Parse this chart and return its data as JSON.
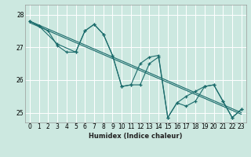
{
  "xlabel": "Humidex (Indice chaleur)",
  "ylabel": "",
  "bg_color": "#cce8e0",
  "grid_color": "#ffffff",
  "line_color": "#1a6b6b",
  "xlim": [
    -0.5,
    23.5
  ],
  "ylim": [
    24.7,
    28.3
  ],
  "yticks": [
    25,
    26,
    27,
    28
  ],
  "xtick_labels": [
    "0",
    "1",
    "2",
    "3",
    "4",
    "5",
    "6",
    "7",
    "8",
    "9",
    "10",
    "11",
    "12",
    "13",
    "14",
    "15",
    "16",
    "17",
    "18",
    "19",
    "20",
    "21",
    "22",
    "23"
  ],
  "trend_x": [
    0,
    23
  ],
  "trend_y": [
    27.8,
    25.0
  ],
  "trend2_x": [
    0,
    23
  ],
  "trend2_y": [
    27.75,
    24.95
  ],
  "series_x": [
    0,
    1,
    3,
    5,
    6,
    7,
    8,
    9,
    10,
    11,
    12,
    13,
    14,
    15,
    16,
    17,
    18,
    19,
    20,
    21,
    22,
    23
  ],
  "series_y": [
    27.8,
    27.65,
    27.1,
    26.85,
    27.5,
    27.7,
    27.4,
    26.75,
    25.8,
    25.85,
    26.5,
    26.7,
    26.75,
    24.85,
    25.3,
    25.2,
    25.35,
    25.8,
    25.85,
    25.35,
    24.85,
    25.1
  ],
  "series2_x": [
    0,
    1,
    2,
    3,
    4,
    5,
    6,
    7,
    8,
    9,
    10,
    11,
    12,
    13,
    14,
    15,
    16,
    17,
    18,
    19,
    20,
    21,
    22,
    23
  ],
  "series2_y": [
    27.8,
    27.65,
    27.5,
    27.05,
    26.85,
    26.85,
    27.5,
    27.7,
    27.4,
    26.75,
    25.8,
    25.85,
    25.85,
    26.5,
    26.7,
    24.85,
    25.3,
    25.5,
    25.65,
    25.8,
    25.85,
    25.35,
    24.85,
    25.1
  ]
}
